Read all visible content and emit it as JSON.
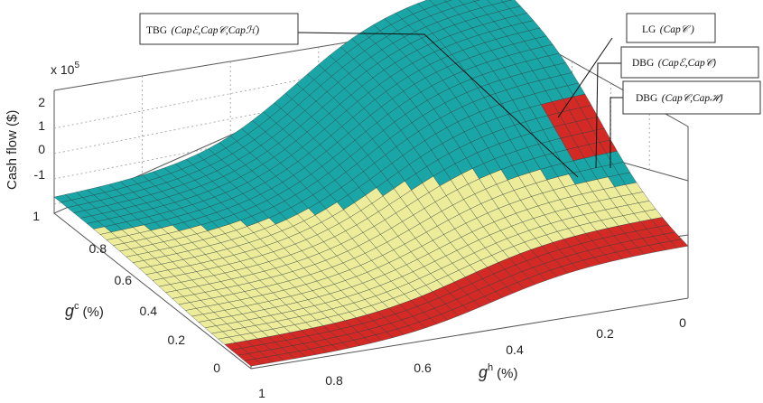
{
  "chart_data": {
    "type": "surface3d",
    "zlabel": "Cash flow ($)",
    "zscale_label": "x 10",
    "zscale_exp": "5",
    "xlabel": {
      "base": "g",
      "sup": "h",
      "unit": "(%)"
    },
    "ylabel": {
      "base": "g",
      "sup": "c",
      "unit": "(%)"
    },
    "xlim": [
      0,
      1
    ],
    "ylim": [
      0,
      1
    ],
    "zlim": [
      -2,
      2.5
    ],
    "x_ticks": [
      "1",
      "0.8",
      "0.6",
      "0.4",
      "0.2",
      "0"
    ],
    "y_ticks": [
      "0",
      "0.2",
      "0.4",
      "0.6",
      "0.8",
      "1"
    ],
    "z_ticks": [
      "-1",
      "0",
      "1",
      "2"
    ],
    "grid": true,
    "regions": [
      {
        "name": "TBG",
        "color": "#ecec9a"
      },
      {
        "name": "LG",
        "color": "#1aa6a6"
      },
      {
        "name": "DBG (Cap_E, Cap_C)",
        "color": "#d42a26"
      },
      {
        "name": "DBG (Cap_C, Cap_H)",
        "color": "#d42a26"
      }
    ],
    "callouts": [
      {
        "prefix": "TBG",
        "args": "(Capℰ,Cap𝒞,Capℋ)"
      },
      {
        "prefix": "LG",
        "args": "(Cap𝒞 )"
      },
      {
        "prefix": "DBG",
        "args": "(Capℰ,Cap𝒞)"
      },
      {
        "prefix": "DBG",
        "args": "(Cap𝒞,Capℋ)"
      }
    ]
  }
}
